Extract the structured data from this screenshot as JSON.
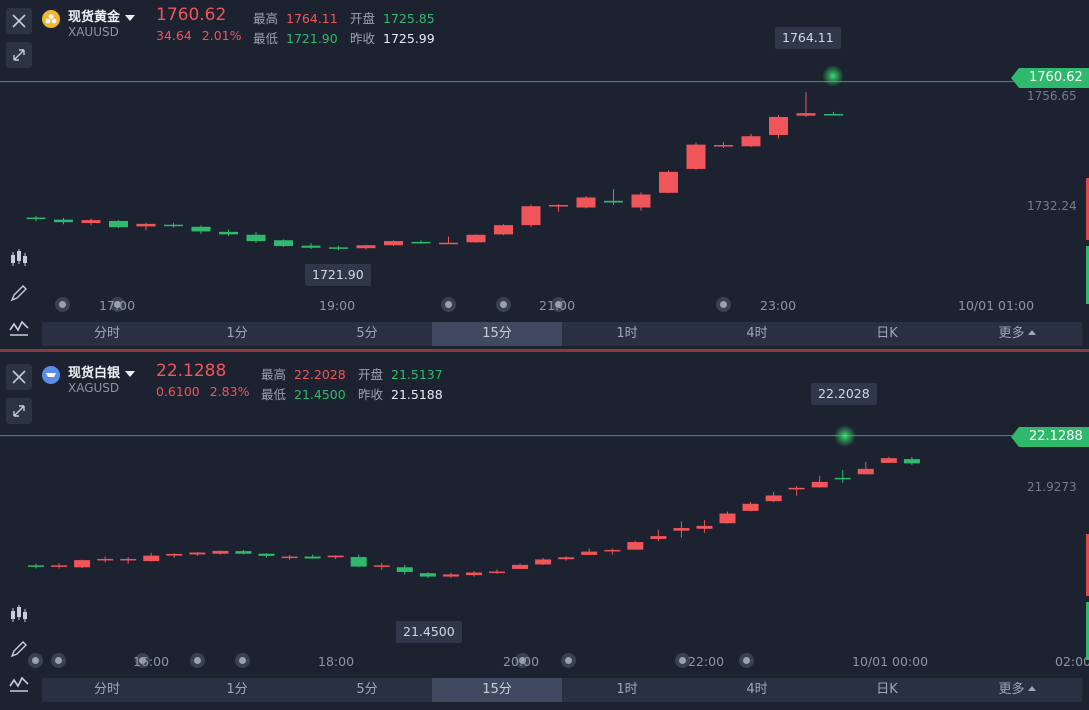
{
  "gold": {
    "name": "现货黄金",
    "code": "XAUUSD",
    "last": "1760.62",
    "change": "34.64",
    "change_pct": "2.01%",
    "high_label": "最高",
    "high": "1764.11",
    "open_label": "开盘",
    "open": "1725.85",
    "low_label": "最低",
    "low": "1721.90",
    "prev_label": "昨收",
    "prev": "1725.99",
    "last_tag": "1760.62",
    "axis_prices": [
      "1756.65",
      "1732.24"
    ],
    "high_tag": "1764.11",
    "low_tag": "1721.90",
    "time_labels": [
      "17:00",
      "19:00",
      "21:00",
      "23:00",
      "10/01 01:00"
    ],
    "chart_data": {
      "type": "candlestick",
      "series": [
        {
          "o": 1728.2,
          "h": 1728.6,
          "l": 1727.3,
          "c": 1727.9
        },
        {
          "o": 1727.7,
          "h": 1728.1,
          "l": 1726.6,
          "c": 1727.1
        },
        {
          "o": 1726.9,
          "h": 1728.0,
          "l": 1726.3,
          "c": 1727.6
        },
        {
          "o": 1727.4,
          "h": 1727.6,
          "l": 1725.7,
          "c": 1725.9
        },
        {
          "o": 1726.1,
          "h": 1727.0,
          "l": 1725.2,
          "c": 1726.7
        },
        {
          "o": 1726.5,
          "h": 1727.0,
          "l": 1725.8,
          "c": 1726.2
        },
        {
          "o": 1726.0,
          "h": 1726.3,
          "l": 1724.3,
          "c": 1724.9
        },
        {
          "o": 1724.8,
          "h": 1725.4,
          "l": 1723.8,
          "c": 1724.2
        },
        {
          "o": 1724.1,
          "h": 1724.7,
          "l": 1722.2,
          "c": 1722.6
        },
        {
          "o": 1722.8,
          "h": 1723.0,
          "l": 1721.2,
          "c": 1721.4
        },
        {
          "o": 1721.5,
          "h": 1722.1,
          "l": 1720.7,
          "c": 1721.0
        },
        {
          "o": 1721.1,
          "h": 1721.5,
          "l": 1720.4,
          "c": 1720.8
        },
        {
          "o": 1720.9,
          "h": 1721.7,
          "l": 1720.6,
          "c": 1721.6
        },
        {
          "o": 1721.6,
          "h": 1722.8,
          "l": 1721.4,
          "c": 1722.6
        },
        {
          "o": 1722.4,
          "h": 1722.8,
          "l": 1721.9,
          "c": 1722.2
        },
        {
          "o": 1722.0,
          "h": 1723.7,
          "l": 1721.9,
          "c": 1722.2
        },
        {
          "o": 1722.3,
          "h": 1724.2,
          "l": 1722.2,
          "c": 1724.1
        },
        {
          "o": 1724.2,
          "h": 1726.6,
          "l": 1724.0,
          "c": 1726.4
        },
        {
          "o": 1726.4,
          "h": 1731.3,
          "l": 1725.9,
          "c": 1730.9
        },
        {
          "o": 1731.0,
          "h": 1731.4,
          "l": 1729.6,
          "c": 1731.2
        },
        {
          "o": 1730.6,
          "h": 1733.3,
          "l": 1730.4,
          "c": 1733.0
        },
        {
          "o": 1732.2,
          "h": 1735.0,
          "l": 1731.2,
          "c": 1731.8
        },
        {
          "o": 1730.6,
          "h": 1734.2,
          "l": 1729.9,
          "c": 1733.7
        },
        {
          "o": 1734.1,
          "h": 1739.5,
          "l": 1734.0,
          "c": 1739.1
        },
        {
          "o": 1739.8,
          "h": 1746.1,
          "l": 1739.6,
          "c": 1745.6
        },
        {
          "o": 1745.2,
          "h": 1746.2,
          "l": 1744.8,
          "c": 1745.5
        },
        {
          "o": 1745.2,
          "h": 1748.2,
          "l": 1745.0,
          "c": 1747.6
        },
        {
          "o": 1747.9,
          "h": 1752.7,
          "l": 1747.1,
          "c": 1752.2
        },
        {
          "o": 1752.5,
          "h": 1758.1,
          "l": 1752.2,
          "c": 1753.1
        },
        {
          "o": 1752.9,
          "h": 1753.4,
          "l": 1752.7,
          "c": 1752.6
        }
      ]
    }
  },
  "silver": {
    "name": "现货白银",
    "code": "XAGUSD",
    "last": "22.1288",
    "change": "0.6100",
    "change_pct": "2.83%",
    "high_label": "最高",
    "high": "22.2028",
    "open_label": "开盘",
    "open": "21.5137",
    "low_label": "最低",
    "low": "21.4500",
    "prev_label": "昨收",
    "prev": "21.5188",
    "last_tag": "22.1288",
    "axis_prices": [
      "21.9273"
    ],
    "high_tag": "22.2028",
    "low_tag": "21.4500",
    "time_labels": [
      "16:00",
      "18:00",
      "20:00",
      "22:00",
      "10/01 00:00",
      "02:00"
    ],
    "chart_data": {
      "type": "candlestick",
      "series": [
        {
          "o": 21.583,
          "h": 21.59,
          "l": 21.57,
          "c": 21.582
        },
        {
          "o": 21.582,
          "h": 21.591,
          "l": 21.57,
          "c": 21.583
        },
        {
          "o": 21.575,
          "h": 21.607,
          "l": 21.572,
          "c": 21.605
        },
        {
          "o": 21.609,
          "h": 21.62,
          "l": 21.596,
          "c": 21.61
        },
        {
          "o": 21.609,
          "h": 21.618,
          "l": 21.59,
          "c": 21.61
        },
        {
          "o": 21.601,
          "h": 21.636,
          "l": 21.6,
          "c": 21.624
        },
        {
          "o": 21.624,
          "h": 21.634,
          "l": 21.615,
          "c": 21.631
        },
        {
          "o": 21.629,
          "h": 21.639,
          "l": 21.623,
          "c": 21.637
        },
        {
          "o": 21.632,
          "h": 21.646,
          "l": 21.629,
          "c": 21.644
        },
        {
          "o": 21.643,
          "h": 21.648,
          "l": 21.629,
          "c": 21.632
        },
        {
          "o": 21.632,
          "h": 21.634,
          "l": 21.616,
          "c": 21.623
        },
        {
          "o": 21.614,
          "h": 21.627,
          "l": 21.606,
          "c": 21.62
        },
        {
          "o": 21.62,
          "h": 21.628,
          "l": 21.611,
          "c": 21.612
        },
        {
          "o": 21.617,
          "h": 21.626,
          "l": 21.609,
          "c": 21.624
        },
        {
          "o": 21.618,
          "h": 21.628,
          "l": 21.575,
          "c": 21.578
        },
        {
          "o": 21.582,
          "h": 21.593,
          "l": 21.564,
          "c": 21.583
        },
        {
          "o": 21.575,
          "h": 21.586,
          "l": 21.544,
          "c": 21.555
        },
        {
          "o": 21.55,
          "h": 21.555,
          "l": 21.53,
          "c": 21.536
        },
        {
          "o": 21.536,
          "h": 21.552,
          "l": 21.53,
          "c": 21.545
        },
        {
          "o": 21.542,
          "h": 21.56,
          "l": 21.536,
          "c": 21.553
        },
        {
          "o": 21.554,
          "h": 21.566,
          "l": 21.547,
          "c": 21.557
        },
        {
          "o": 21.568,
          "h": 21.59,
          "l": 21.567,
          "c": 21.585
        },
        {
          "o": 21.587,
          "h": 21.614,
          "l": 21.585,
          "c": 21.608
        },
        {
          "o": 21.609,
          "h": 21.621,
          "l": 21.603,
          "c": 21.617
        },
        {
          "o": 21.627,
          "h": 21.654,
          "l": 21.626,
          "c": 21.641
        },
        {
          "o": 21.648,
          "h": 21.654,
          "l": 21.629,
          "c": 21.648
        },
        {
          "o": 21.649,
          "h": 21.686,
          "l": 21.649,
          "c": 21.681
        },
        {
          "o": 21.694,
          "h": 21.733,
          "l": 21.685,
          "c": 21.706
        },
        {
          "o": 21.729,
          "h": 21.768,
          "l": 21.7,
          "c": 21.74
        },
        {
          "o": 21.737,
          "h": 21.773,
          "l": 21.72,
          "c": 21.749
        },
        {
          "o": 21.76,
          "h": 21.809,
          "l": 21.759,
          "c": 21.801
        },
        {
          "o": 21.812,
          "h": 21.85,
          "l": 21.81,
          "c": 21.842
        },
        {
          "o": 21.853,
          "h": 21.892,
          "l": 21.849,
          "c": 21.877
        },
        {
          "o": 21.906,
          "h": 21.917,
          "l": 21.876,
          "c": 21.909
        },
        {
          "o": 21.911,
          "h": 21.96,
          "l": 21.91,
          "c": 21.934
        },
        {
          "o": 21.951,
          "h": 21.984,
          "l": 21.93,
          "c": 21.95
        },
        {
          "o": 21.966,
          "h": 22.018,
          "l": 21.966,
          "c": 21.989
        },
        {
          "o": 22.014,
          "h": 22.04,
          "l": 22.013,
          "c": 22.034
        },
        {
          "o": 22.03,
          "h": 22.039,
          "l": 22.006,
          "c": 22.012
        }
      ]
    }
  },
  "timebar": {
    "tabs": [
      "分时",
      "1分",
      "5分",
      "15分",
      "1时",
      "4时",
      "日K",
      "更多"
    ],
    "active_index": 3
  },
  "colors": {
    "up": "#f0555a",
    "down": "#2fb96c",
    "background": "#1c2230"
  },
  "icons": [
    "close-icon",
    "expand-icon",
    "candlestick-icon",
    "pencil-icon",
    "indicator-icon"
  ]
}
